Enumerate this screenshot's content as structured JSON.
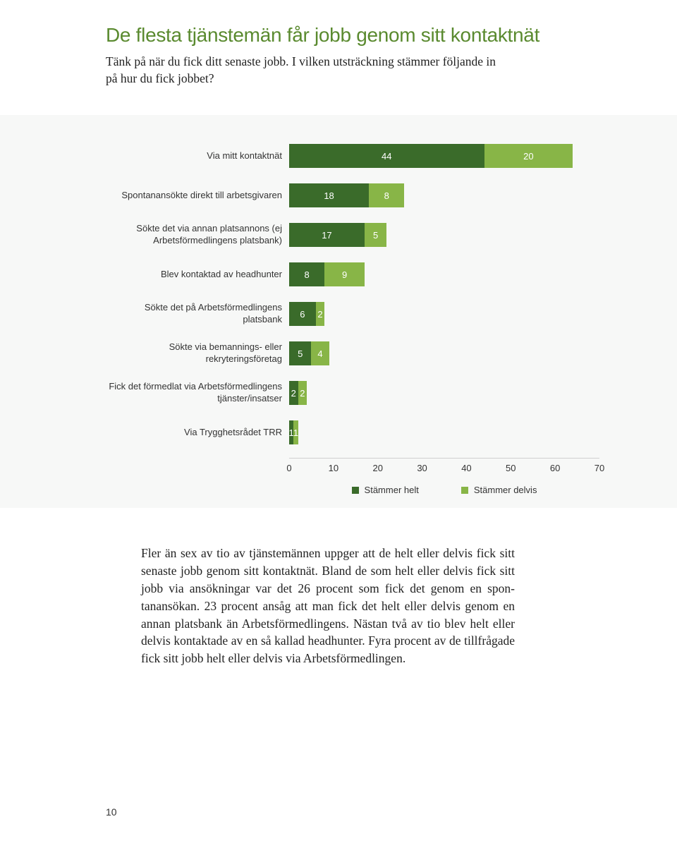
{
  "colors": {
    "title": "#5a8a2f",
    "series1": "#3a6b2a",
    "series2": "#88b547"
  },
  "title": "De flesta tjänstemän får jobb genom sitt kontaktnät",
  "subtitle": "Tänk på när du fick ditt senaste jobb. I vilken utsträckning stämmer följande in på hur du fick jobbet?",
  "chart": {
    "xmax": 70,
    "xticks": [
      0,
      10,
      20,
      30,
      40,
      50,
      60,
      70
    ],
    "legend": {
      "helt": "Stämmer helt",
      "delvis": "Stämmer delvis"
    },
    "rows": [
      {
        "label": "Via mitt kontaktnät",
        "v1": 44,
        "v2": 20
      },
      {
        "label": "Spontanansökte direkt till arbetsgivaren",
        "v1": 18,
        "v2": 8
      },
      {
        "label": "Sökte det via annan platsannons (ej Arbetsförmedlingens platsbank)",
        "v1": 17,
        "v2": 5
      },
      {
        "label": "Blev kontaktad av headhunter",
        "v1": 8,
        "v2": 9
      },
      {
        "label": "Sökte det på Arbetsförmedlingens platsbank",
        "v1": 6,
        "v2": 2
      },
      {
        "label": "Sökte via bemannings- eller rekryteringsföretag",
        "v1": 5,
        "v2": 4
      },
      {
        "label": "Fick det förmedlat via Arbetsförmedlingens tjänster/insatser",
        "v1": 2,
        "v2": 2
      },
      {
        "label": "Via Trygghetsrådet TRR",
        "v1": 1,
        "v2": 1
      }
    ]
  },
  "body": "Fler än sex av tio av tjänstemännen uppger att de helt eller delvis fick sitt senaste jobb genom sitt kontaktnät. Bland de som helt eller delvis fick sitt jobb via ansökningar var det 26 procent som fick det genom en spon­tanansökan. 23 procent ansåg att man fick det helt eller delvis genom en annan platsbank än Arbetsförmedlingens. Nästan två av tio blev helt eller delvis kontaktade av en så kallad headhunter. Fyra  procent av de tillfrågade fick sitt jobb helt eller delvis via Arbetsförmedlingen.",
  "pageNum": "10"
}
